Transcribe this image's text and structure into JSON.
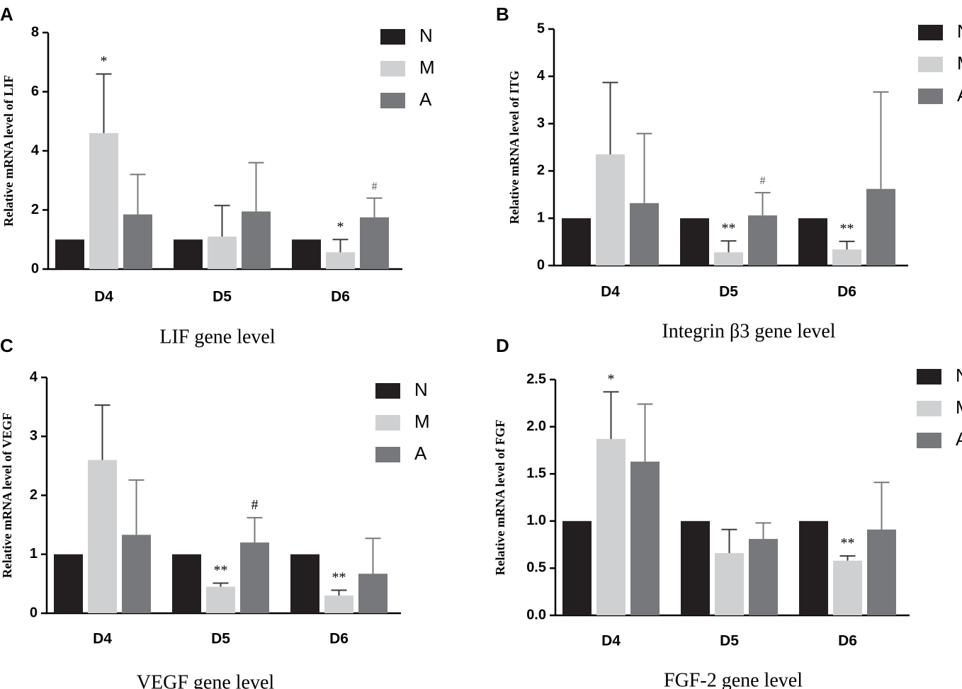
{
  "legend": [
    {
      "key": "N",
      "color": "#231f20"
    },
    {
      "key": "M",
      "color": "#cfd0d2"
    },
    {
      "key": "A",
      "color": "#77787b"
    }
  ],
  "chart_data": [
    {
      "panel": "A",
      "type": "bar",
      "caption": "LIF gene level",
      "ylabel": "Relative mRNA level of LIF",
      "categories": [
        "D4",
        "D5",
        "D6"
      ],
      "ylim": [
        0,
        8
      ],
      "yticks": [
        "0",
        "2",
        "4",
        "6",
        "8"
      ],
      "ytick_values": [
        0,
        2,
        4,
        6,
        8
      ],
      "series": [
        {
          "name": "N",
          "values": [
            1.0,
            1.0,
            1.0
          ],
          "errors": [
            0,
            0,
            0
          ],
          "annotations": [
            "",
            "",
            ""
          ]
        },
        {
          "name": "M",
          "values": [
            4.6,
            1.1,
            0.57
          ],
          "errors": [
            2.0,
            1.05,
            0.43
          ],
          "annotations": [
            "*",
            "",
            "*"
          ]
        },
        {
          "name": "A",
          "values": [
            1.85,
            1.95,
            1.75
          ],
          "errors": [
            1.35,
            1.65,
            0.65
          ],
          "annotations": [
            "",
            "",
            "#"
          ]
        }
      ]
    },
    {
      "panel": "B",
      "type": "bar",
      "caption": "Integrin β3 gene level",
      "ylabel": "Relative mRNA level of ITG",
      "categories": [
        "D4",
        "D5",
        "D6"
      ],
      "ylim": [
        0,
        5
      ],
      "yticks": [
        "0",
        "1",
        "2",
        "3",
        "4",
        "5"
      ],
      "ytick_values": [
        0,
        1,
        2,
        3,
        4,
        5
      ],
      "series": [
        {
          "name": "N",
          "values": [
            1.0,
            1.0,
            1.0
          ],
          "errors": [
            0,
            0,
            0
          ],
          "annotations": [
            "",
            "",
            ""
          ]
        },
        {
          "name": "M",
          "values": [
            2.35,
            0.28,
            0.34
          ],
          "errors": [
            1.52,
            0.24,
            0.17
          ],
          "annotations": [
            "",
            "**",
            "**"
          ]
        },
        {
          "name": "A",
          "values": [
            1.32,
            1.06,
            1.62
          ],
          "errors": [
            1.47,
            0.48,
            2.05
          ],
          "annotations": [
            "",
            "#",
            ""
          ]
        }
      ]
    },
    {
      "panel": "C",
      "type": "bar",
      "caption": "VEGF gene level",
      "ylabel": "Relative mRNA level of VEGF",
      "categories": [
        "D4",
        "D5",
        "D6"
      ],
      "ylim": [
        0,
        4
      ],
      "yticks": [
        "0",
        "1",
        "2",
        "3",
        "4"
      ],
      "ytick_values": [
        0,
        1,
        2,
        3,
        4
      ],
      "series": [
        {
          "name": "N",
          "values": [
            1.0,
            1.0,
            1.0
          ],
          "errors": [
            0,
            0,
            0
          ],
          "annotations": [
            "",
            "",
            ""
          ]
        },
        {
          "name": "M",
          "values": [
            2.6,
            0.45,
            0.3
          ],
          "errors": [
            0.93,
            0.06,
            0.09
          ],
          "annotations": [
            "",
            "**",
            "**"
          ]
        },
        {
          "name": "A",
          "values": [
            1.33,
            1.2,
            0.67
          ],
          "errors": [
            0.93,
            0.42,
            0.6
          ],
          "annotations": [
            "",
            "#",
            ""
          ]
        }
      ]
    },
    {
      "panel": "D",
      "type": "bar",
      "caption": "FGF-2 gene level",
      "ylabel": "Relative mRNA level of FGF",
      "categories": [
        "D4",
        "D5",
        "D6"
      ],
      "ylim": [
        0,
        2.5
      ],
      "yticks": [
        "0.0",
        "0.5",
        "1.0",
        "1.5",
        "2.0",
        "2.5"
      ],
      "ytick_values": [
        0,
        0.5,
        1.0,
        1.5,
        2.0,
        2.5
      ],
      "series": [
        {
          "name": "N",
          "values": [
            1.0,
            1.0,
            1.0
          ],
          "errors": [
            0,
            0,
            0
          ],
          "annotations": [
            "",
            "",
            ""
          ]
        },
        {
          "name": "M",
          "values": [
            1.87,
            0.66,
            0.58
          ],
          "errors": [
            0.5,
            0.25,
            0.05
          ],
          "annotations": [
            "*",
            "",
            "**"
          ]
        },
        {
          "name": "A",
          "values": [
            1.63,
            0.81,
            0.91
          ],
          "errors": [
            0.61,
            0.17,
            0.5
          ],
          "annotations": [
            "",
            "",
            ""
          ]
        }
      ]
    }
  ]
}
